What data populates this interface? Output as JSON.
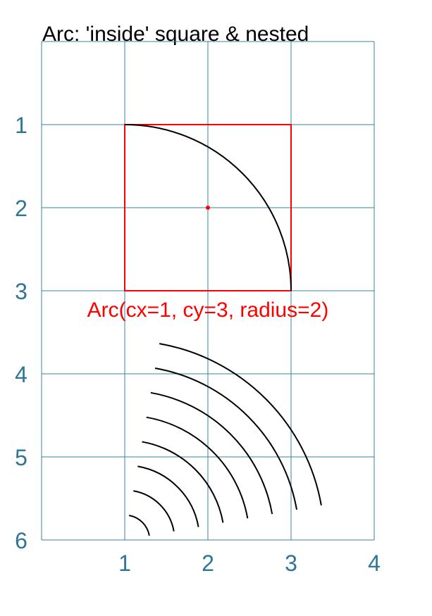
{
  "title": "Arc: 'inside' square & nested",
  "colors": {
    "grid": "#3b7fa3",
    "tick_labels": "#2e7598",
    "square": "#ff0000",
    "arc": "#000000",
    "caption": "#ff0000"
  },
  "axes": {
    "x_ticks": [
      "1",
      "2",
      "3",
      "4"
    ],
    "y_ticks": [
      "1",
      "2",
      "3",
      "4",
      "5",
      "6"
    ],
    "x_range": [
      0,
      4
    ],
    "y_range": [
      0,
      6
    ],
    "y_direction": "down"
  },
  "diagram": {
    "square": {
      "x0": 1,
      "y0": 1,
      "x1": 3,
      "y1": 3
    },
    "center_dot": {
      "x": 2,
      "y": 2
    },
    "main_arc": {
      "cx": 1,
      "cy": 3,
      "radius": 2
    },
    "caption": "Arc(cx=1, cy=3, radius=2)",
    "nested_arcs": [
      {
        "cx": 1,
        "cy": 6,
        "radius": 0.3
      },
      {
        "cx": 1,
        "cy": 6,
        "radius": 0.6
      },
      {
        "cx": 1,
        "cy": 6,
        "radius": 0.9
      },
      {
        "cx": 1,
        "cy": 6,
        "radius": 1.2
      },
      {
        "cx": 1,
        "cy": 6,
        "radius": 1.5
      },
      {
        "cx": 1,
        "cy": 6,
        "radius": 1.8
      },
      {
        "cx": 1,
        "cy": 6,
        "radius": 2.1
      },
      {
        "cx": 1,
        "cy": 6,
        "radius": 2.4
      }
    ],
    "nested_arc_angles_deg": [
      10,
      80
    ]
  }
}
